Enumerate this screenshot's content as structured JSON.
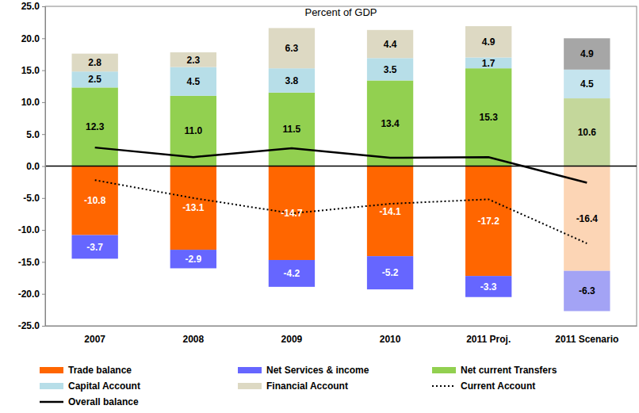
{
  "chart_data": {
    "type": "bar",
    "title": "Percent of GDP",
    "categories": [
      "2007",
      "2008",
      "2009",
      "2010",
      "2011 Proj.",
      "2011 Scenario"
    ],
    "stacked": true,
    "grid": false,
    "legend": "bottom",
    "ylim": [
      -25,
      25
    ],
    "yticks": [
      {
        "value": -25,
        "label": "-25.0"
      },
      {
        "value": -20,
        "label": "-20.0"
      },
      {
        "value": -15,
        "label": "-15.0"
      },
      {
        "value": -10,
        "label": "-10.0"
      },
      {
        "value": -5,
        "label": "-5.0"
      },
      {
        "value": 0,
        "label": "0.0"
      },
      {
        "value": 5,
        "label": "5.0"
      },
      {
        "value": 10,
        "label": "10.0"
      },
      {
        "value": 15,
        "label": "15.0"
      },
      {
        "value": 20,
        "label": "20.0"
      },
      {
        "value": 25,
        "label": "25.0"
      }
    ],
    "series": [
      {
        "name": "Trade balance",
        "type": "bar",
        "data_labels": true,
        "color": "#FF6600",
        "colors": [
          "#FF6600",
          "#FF6600",
          "#FF6600",
          "#FF6600",
          "#FF6600",
          "#FCD5B5"
        ],
        "values": [
          -10.8,
          -13.1,
          -14.7,
          -14.1,
          -17.2,
          -16.4
        ]
      },
      {
        "name": "Net Services & income",
        "type": "bar",
        "data_labels": true,
        "color": "#6666FF",
        "colors": [
          "#6666FF",
          "#6666FF",
          "#6666FF",
          "#6666FF",
          "#6666FF",
          "#A3A3F5"
        ],
        "values": [
          -3.7,
          -2.9,
          -4.2,
          -5.2,
          -3.3,
          -6.3
        ]
      },
      {
        "name": "Net current Transfers",
        "type": "bar",
        "data_labels": true,
        "color": "#92D050",
        "colors": [
          "#92D050",
          "#92D050",
          "#92D050",
          "#92D050",
          "#92D050",
          "#C4D79B"
        ],
        "values": [
          12.3,
          11.0,
          11.5,
          13.4,
          15.3,
          10.6
        ],
        "value_labels": [
          "12.3",
          "11.0",
          "11.5",
          "13.4",
          "15.3",
          "10.6"
        ]
      },
      {
        "name": "Capital Account",
        "type": "bar",
        "data_labels": true,
        "color": "#B7DEE8",
        "colors": [
          "#B7DEE8",
          "#B7DEE8",
          "#B7DEE8",
          "#B7DEE8",
          "#B7DEE8",
          "#C5E4EE"
        ],
        "values": [
          2.5,
          4.5,
          3.8,
          3.5,
          1.7,
          4.5
        ]
      },
      {
        "name": "Financial Account",
        "type": "bar",
        "data_labels": true,
        "color": "#DDD9C3",
        "colors": [
          "#DDD9C3",
          "#DDD9C3",
          "#DDD9C3",
          "#DDD9C3",
          "#DDD9C3",
          "#A6A6A6"
        ],
        "values": [
          2.8,
          2.3,
          6.3,
          4.4,
          4.9,
          4.9
        ]
      },
      {
        "name": "Current Account",
        "type": "line",
        "color": "#000000",
        "line_style": "dotted",
        "values": [
          -2.2,
          -5.0,
          -7.4,
          -5.9,
          -5.2,
          -12.1
        ]
      },
      {
        "name": "Overall balance",
        "type": "line",
        "color": "#000000",
        "line_style": "solid",
        "values": [
          2.9,
          1.4,
          2.8,
          1.3,
          1.4,
          -2.6
        ]
      }
    ]
  }
}
